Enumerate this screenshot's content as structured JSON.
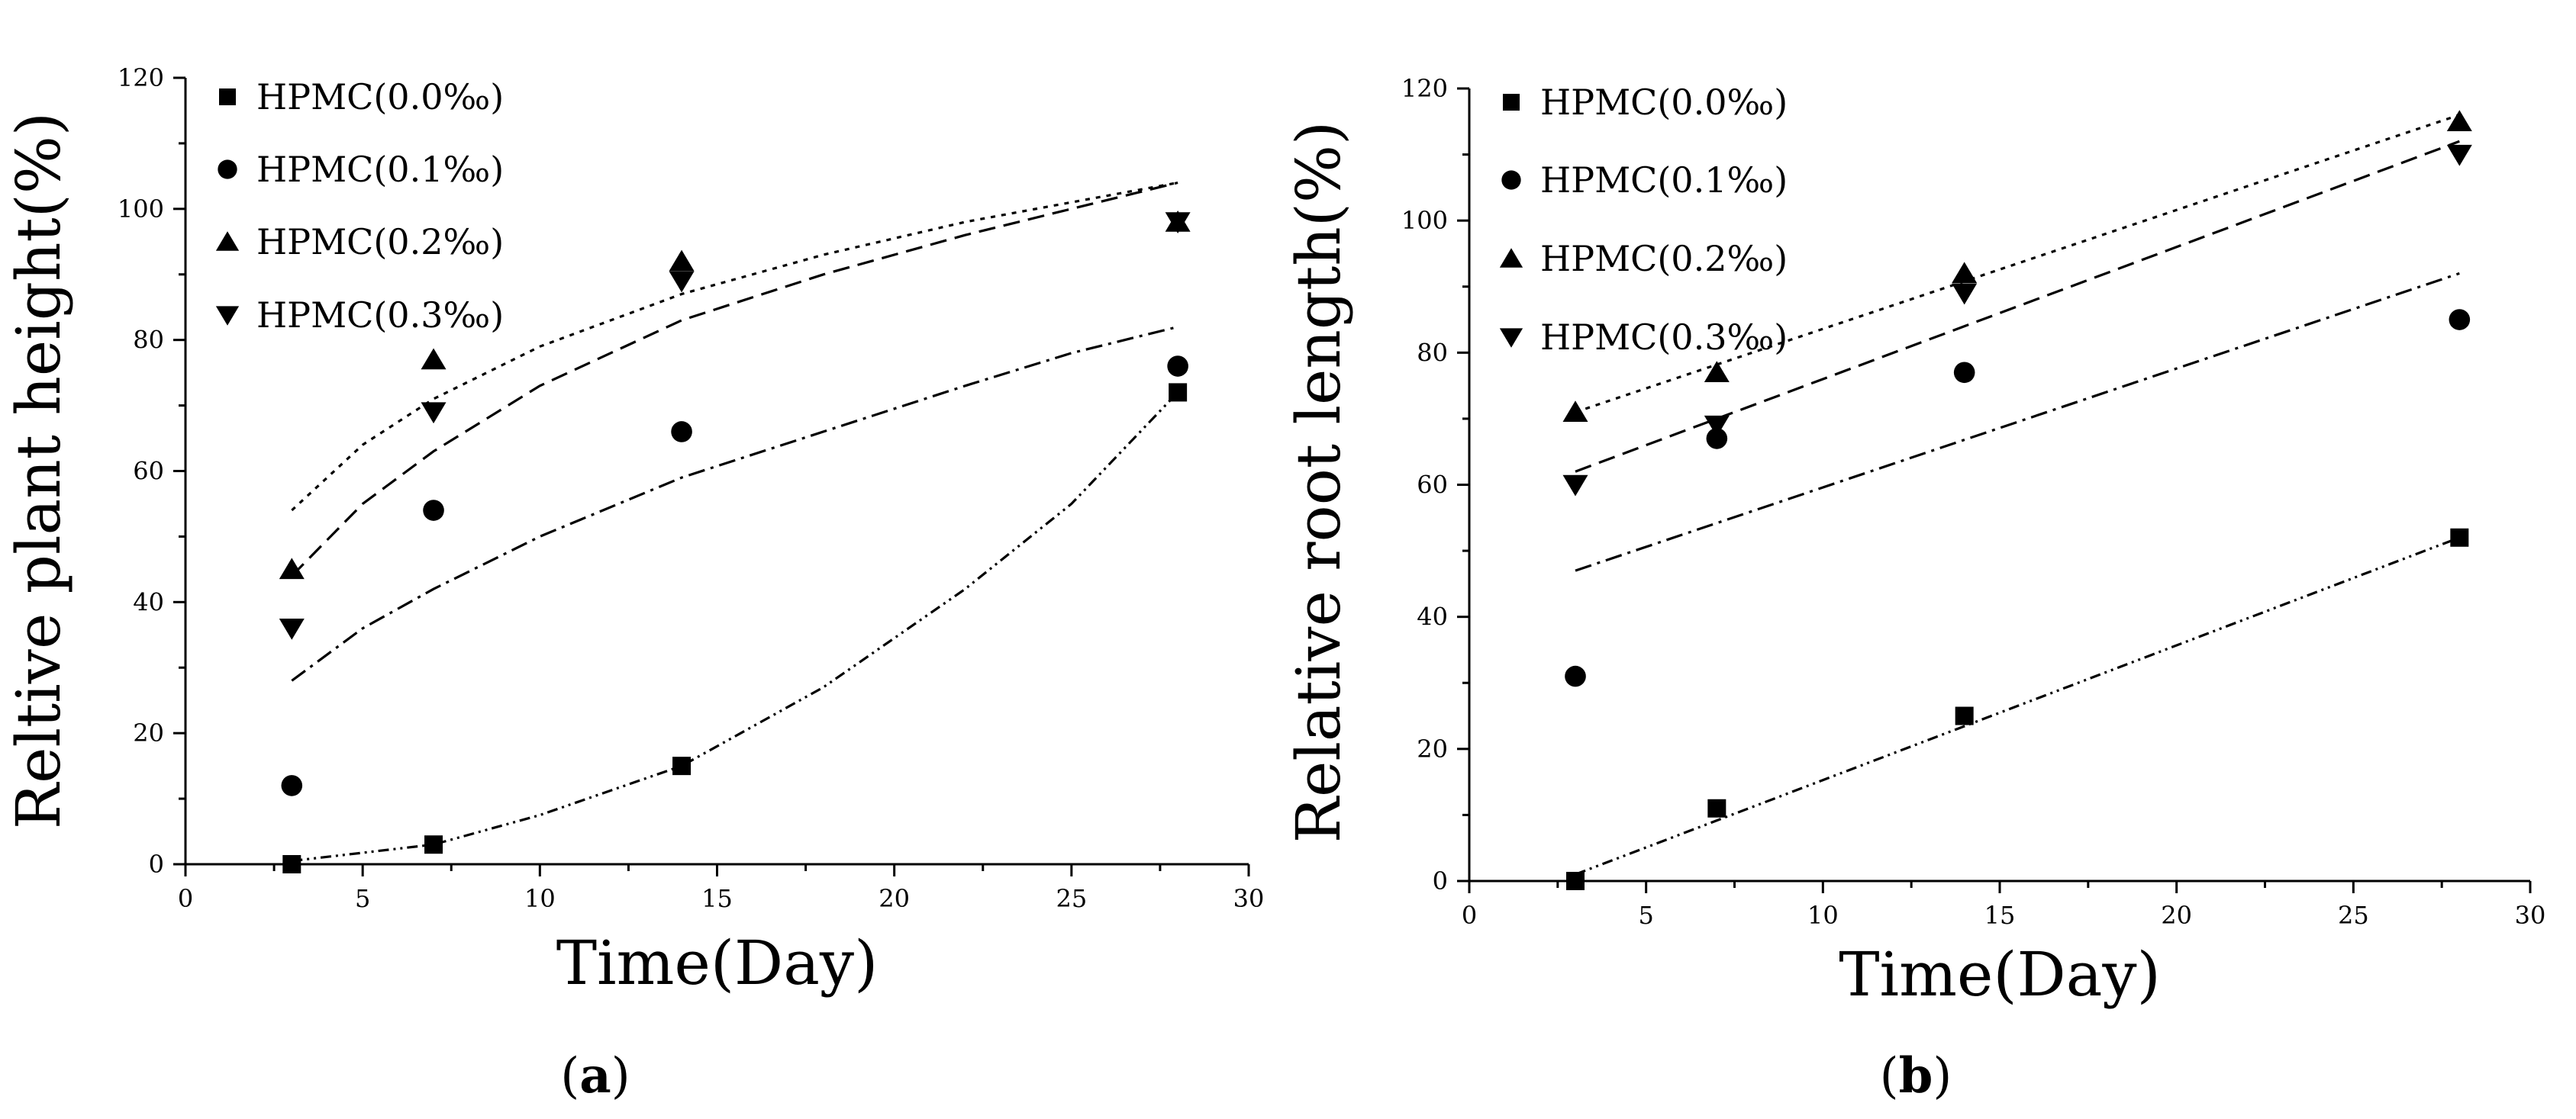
{
  "figure": {
    "panels": [
      {
        "open": "(",
        "letter": "a",
        "close": ")"
      },
      {
        "open": "(",
        "letter": "b",
        "close": ")"
      }
    ]
  },
  "chart_data": [
    {
      "type": "scatter",
      "panel": "a",
      "title": "",
      "xlabel": "Time(Day)",
      "ylabel": "Reltive plant height(%)",
      "xlim": [
        0,
        30
      ],
      "ylim": [
        0,
        120
      ],
      "xticks": [
        0,
        5,
        10,
        15,
        20,
        25,
        30
      ],
      "yticks": [
        0,
        20,
        40,
        60,
        80,
        100,
        120
      ],
      "legend_position": "top-left",
      "x": [
        3,
        7,
        14,
        28
      ],
      "series": [
        {
          "name": "HPMC(0.0‰)",
          "marker": "square",
          "values": [
            0,
            3,
            15,
            72
          ],
          "fit": {
            "style": "dash-dot-dot",
            "x": [
              3,
              7,
              10,
              14,
              18,
              22,
              25,
              28
            ],
            "y": [
              0.5,
              3,
              7.5,
              15,
              27,
              42,
              55,
              72
            ]
          }
        },
        {
          "name": "HPMC(0.1‰)",
          "marker": "circle",
          "values": [
            12,
            54,
            66,
            76
          ],
          "fit": {
            "style": "dash-dot",
            "x": [
              3,
              5,
              7,
              10,
              14,
              18,
              22,
              25,
              28
            ],
            "y": [
              28,
              36,
              42,
              50,
              59,
              66,
              73,
              78,
              82
            ]
          }
        },
        {
          "name": "HPMC(0.2‰)",
          "marker": "triangle-up",
          "values": [
            45,
            77,
            92,
            98
          ],
          "fit": {
            "style": "dotted",
            "x": [
              3,
              5,
              7,
              10,
              14,
              18,
              22,
              25,
              28
            ],
            "y": [
              54,
              64,
              71,
              79,
              87,
              93,
              98,
              101,
              104
            ]
          }
        },
        {
          "name": "HPMC(0.3‰)",
          "marker": "triangle-down",
          "values": [
            36,
            69,
            89,
            98
          ],
          "fit": {
            "style": "dashed",
            "x": [
              3,
              5,
              7,
              10,
              14,
              18,
              22,
              25,
              28
            ],
            "y": [
              44,
              55,
              63,
              73,
              83,
              90,
              96,
              100,
              104
            ]
          }
        }
      ]
    },
    {
      "type": "scatter",
      "panel": "b",
      "title": "",
      "xlabel": "Time(Day)",
      "ylabel": "Relative root length(%)",
      "xlim": [
        0,
        30
      ],
      "ylim": [
        0,
        120
      ],
      "xticks": [
        0,
        5,
        10,
        15,
        20,
        25,
        30
      ],
      "yticks": [
        0,
        20,
        40,
        60,
        80,
        100,
        120
      ],
      "legend_position": "top-left",
      "x": [
        3,
        7,
        14,
        28
      ],
      "series": [
        {
          "name": "HPMC(0.0‰)",
          "marker": "square",
          "values": [
            0,
            11,
            25,
            52
          ],
          "fit": {
            "style": "dash-dot-dot",
            "x": [
              3,
              28
            ],
            "y": [
              1,
              52
            ]
          }
        },
        {
          "name": "HPMC(0.1‰)",
          "marker": "circle",
          "values": [
            31,
            67,
            77,
            85
          ],
          "fit": {
            "style": "dash-dot",
            "x": [
              3,
              28
            ],
            "y": [
              47,
              92
            ]
          }
        },
        {
          "name": "HPMC(0.2‰)",
          "marker": "triangle-up",
          "values": [
            71,
            77,
            92,
            115
          ],
          "fit": {
            "style": "dotted",
            "x": [
              3,
              28
            ],
            "y": [
              71,
              116
            ]
          }
        },
        {
          "name": "HPMC(0.3‰)",
          "marker": "triangle-down",
          "values": [
            60,
            69,
            89,
            110
          ],
          "fit": {
            "style": "dashed",
            "x": [
              3,
              28
            ],
            "y": [
              62,
              112
            ]
          }
        }
      ]
    }
  ]
}
